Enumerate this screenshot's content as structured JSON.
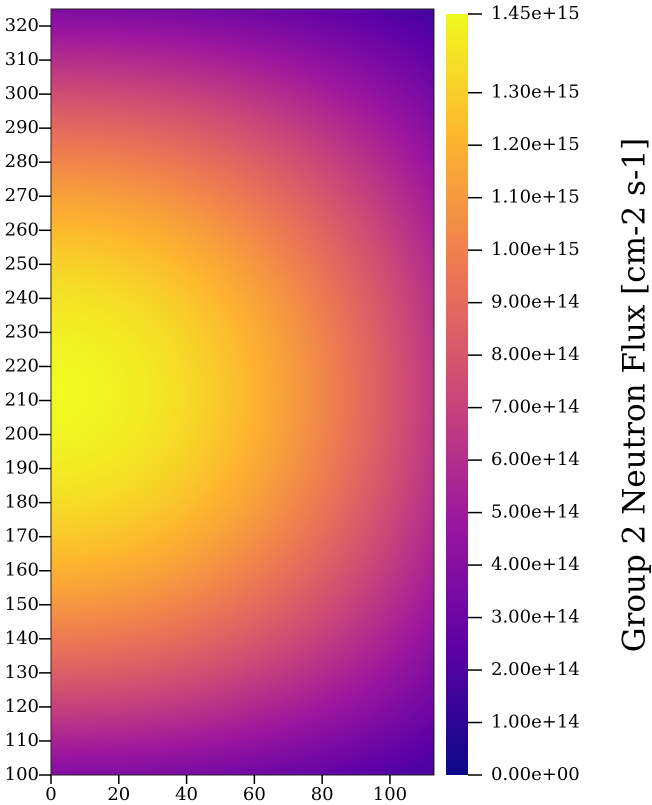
{
  "chart_data": {
    "type": "heatmap",
    "title": "",
    "colorbar_label": "Group 2 Neutron Flux [cm-2 s-1]",
    "colormap": "plasma",
    "colormap_stops": [
      "#0d0887",
      "#5c01a6",
      "#9c179e",
      "#cc4778",
      "#ed7953",
      "#fdb42f",
      "#f0f921"
    ],
    "x": {
      "range": [
        0,
        113
      ],
      "ticks": [
        0,
        20,
        40,
        60,
        80,
        100
      ],
      "tick_labels": [
        "0",
        "20",
        "40",
        "60",
        "80",
        "100"
      ]
    },
    "y": {
      "range": [
        100,
        325
      ],
      "ticks": [
        100,
        110,
        120,
        130,
        140,
        150,
        160,
        170,
        180,
        190,
        200,
        210,
        220,
        230,
        240,
        250,
        260,
        270,
        280,
        290,
        300,
        310,
        320
      ],
      "tick_labels": [
        "100",
        "110",
        "120",
        "130",
        "140",
        "150",
        "160",
        "170",
        "180",
        "190",
        "200",
        "210",
        "220",
        "230",
        "240",
        "250",
        "260",
        "270",
        "280",
        "290",
        "300",
        "310",
        "320"
      ]
    },
    "value_range": [
      0,
      1450000000000000.0
    ],
    "colorbar_ticks": [
      0,
      100000000000000.0,
      200000000000000.0,
      300000000000000.0,
      400000000000000.0,
      500000000000000.0,
      600000000000000.0,
      700000000000000.0,
      800000000000000.0,
      900000000000000.0,
      1000000000000000.0,
      1100000000000000.0,
      1200000000000000.0,
      1300000000000000.0,
      1450000000000000.0
    ],
    "colorbar_tick_labels": [
      "0.00e+00",
      "1.00e+14",
      "2.00e+14",
      "3.00e+14",
      "4.00e+14",
      "5.00e+14",
      "6.00e+14",
      "7.00e+14",
      "8.00e+14",
      "9.00e+14",
      "1.00e+15",
      "1.10e+15",
      "1.20e+15",
      "1.30e+15",
      "1.45e+15"
    ],
    "field": {
      "peak_value": 1450000000000000.0,
      "peak_x": 0,
      "peak_y": 212,
      "x_scale": 160,
      "y_scale": 270
    }
  }
}
